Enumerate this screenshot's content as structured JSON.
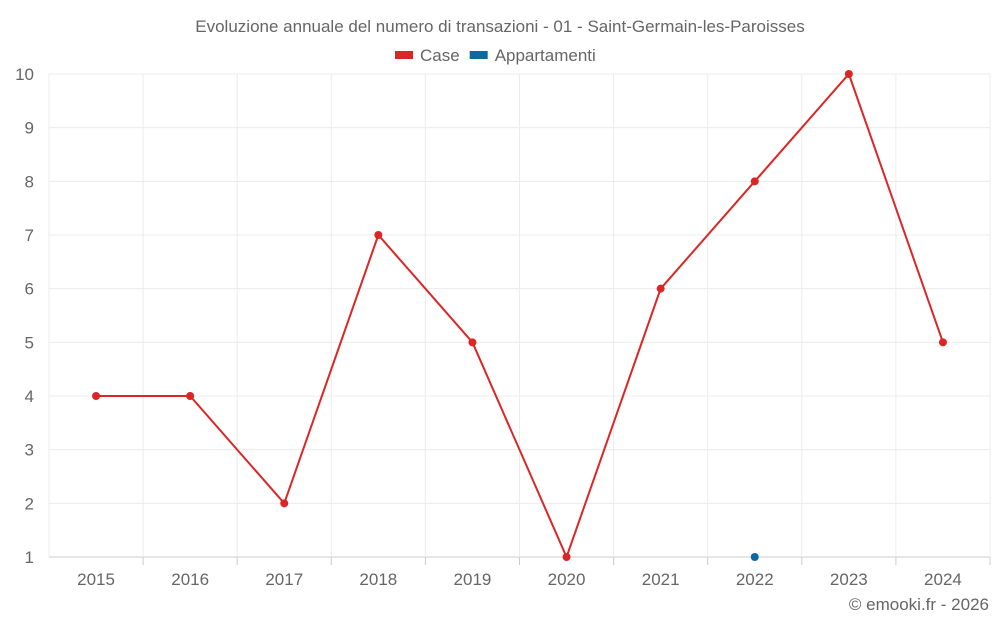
{
  "chart_data": {
    "type": "line",
    "title": "Evoluzione annuale del numero di transazioni - 01 - Saint-Germain-les-Paroisses",
    "categories": [
      "2015",
      "2016",
      "2017",
      "2018",
      "2019",
      "2020",
      "2021",
      "2022",
      "2023",
      "2024"
    ],
    "series": [
      {
        "name": "Case",
        "color": "#dc2626",
        "values": [
          4,
          4,
          2,
          7,
          5,
          1,
          6,
          8,
          10,
          5
        ]
      },
      {
        "name": "Appartamenti",
        "color": "#0b6aa2",
        "values": [
          null,
          null,
          null,
          null,
          null,
          null,
          null,
          1,
          null,
          null
        ]
      }
    ],
    "yticks": [
      1,
      2,
      3,
      4,
      5,
      6,
      7,
      8,
      9,
      10
    ],
    "ylim": [
      1,
      10
    ],
    "grid": true,
    "legend": "top-center",
    "xlabel": "",
    "ylabel": ""
  },
  "credit": "© emooki.fr - 2026"
}
